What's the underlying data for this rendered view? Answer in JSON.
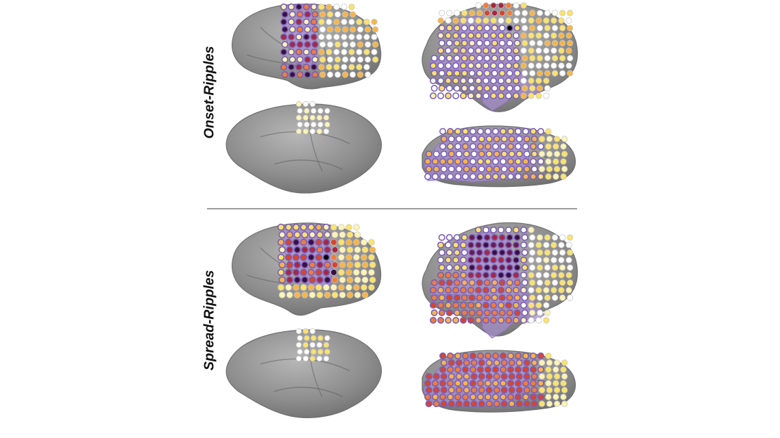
{
  "row_labels": {
    "onset": "Onset-Ripples",
    "spread": "Spread-Ripples"
  },
  "colors": {
    "background": "#ffffff",
    "brain_fill": "#8f8f8f",
    "brain_shadow": "#6f6f6f",
    "brain_highlight": "#b3b3b3",
    "sulcus": "#5e5e5e",
    "roi_fill": "#a58fc9",
    "roi_edge": "#8a6fc0",
    "divider": "#9a9a9a",
    "electrode_outline": "#7a5cb8",
    "scale": [
      "#ffffff",
      "#fdf3b4",
      "#fbe26a",
      "#f6b54a",
      "#ee7e3a",
      "#d8452e",
      "#a82640",
      "#6b1a4e",
      "#3a0f3f",
      "#050505"
    ]
  }
}
